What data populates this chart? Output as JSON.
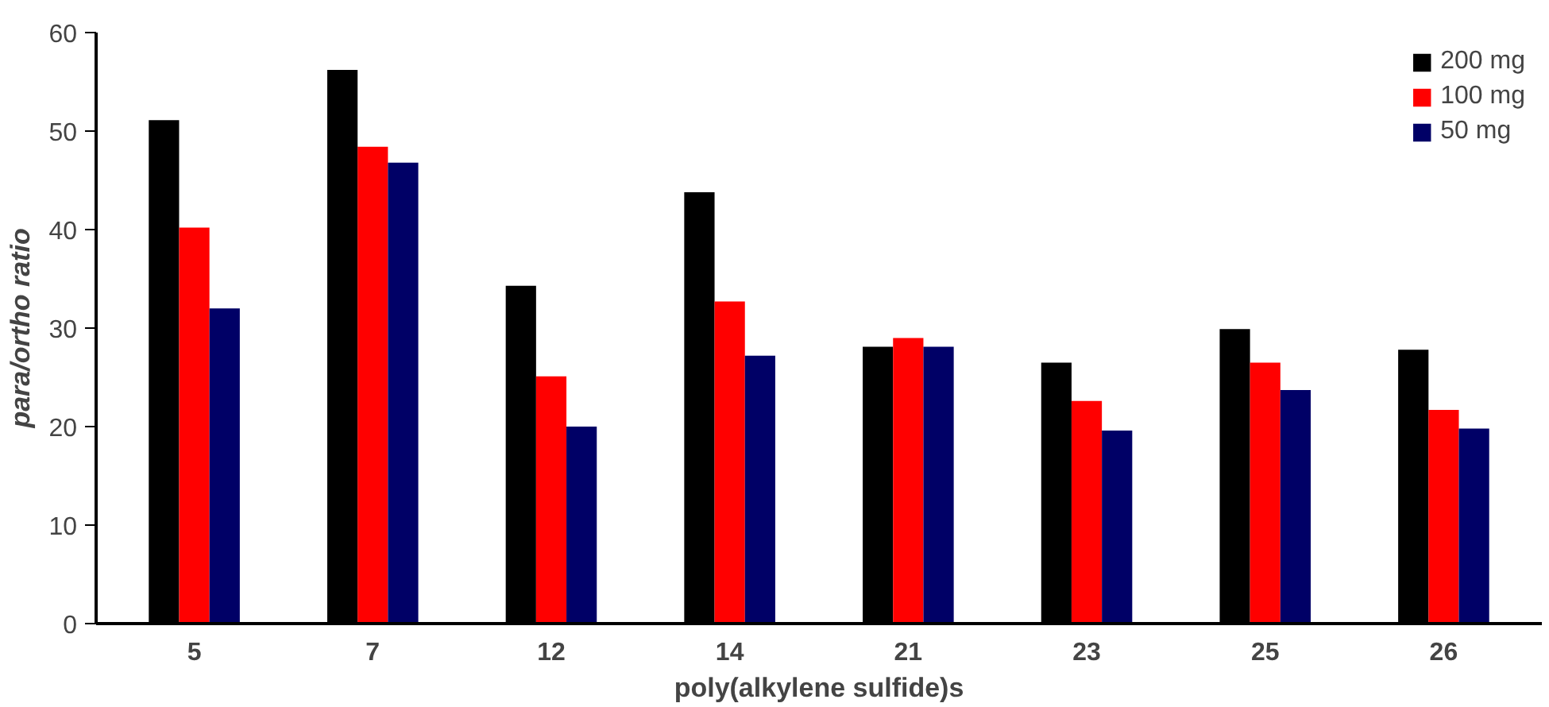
{
  "chart_data": {
    "type": "bar",
    "xlabel": "poly(alkylene sulfide)s",
    "ylabel": "para/ortho ratio",
    "categories": [
      "5",
      "7",
      "12",
      "14",
      "21",
      "23",
      "25",
      "26"
    ],
    "series": [
      {
        "name": "200 mg",
        "color": "#000000",
        "values": [
          51.1,
          56.2,
          34.3,
          43.8,
          28.1,
          26.5,
          29.9,
          27.8
        ]
      },
      {
        "name": "100 mg",
        "color": "#ff0000",
        "values": [
          40.2,
          48.4,
          25.1,
          32.7,
          29.0,
          22.6,
          26.5,
          21.7
        ]
      },
      {
        "name": "50 mg",
        "color": "#000066",
        "values": [
          32.0,
          46.8,
          20.0,
          27.2,
          28.1,
          19.6,
          23.7,
          19.8
        ]
      }
    ],
    "ylim": [
      0,
      60
    ],
    "yticks": [
      0,
      10,
      20,
      30,
      40,
      50,
      60
    ],
    "grid": false,
    "legend": "top right"
  }
}
